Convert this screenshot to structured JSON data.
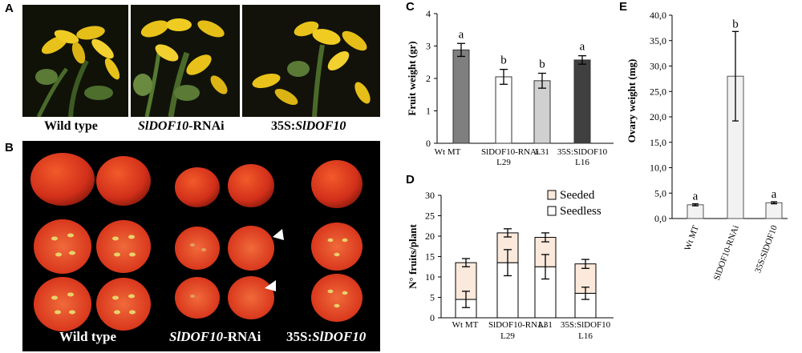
{
  "panels": {
    "A": {
      "letter": "A",
      "captions": [
        {
          "plain": "Wild type",
          "italic": "",
          "suffix": ""
        },
        {
          "plain": "",
          "italic": "SlDOF10",
          "suffix": "-RNAi"
        },
        {
          "plain": "35S:",
          "italic": "SlDOF10",
          "suffix": ""
        }
      ]
    },
    "B": {
      "letter": "B",
      "captions": [
        {
          "plain": "Wild type",
          "italic": "",
          "suffix": ""
        },
        {
          "plain": "",
          "italic": "SlDOF10",
          "suffix": "-RNAi"
        },
        {
          "plain": "35S:",
          "italic": "SlDOF10",
          "suffix": ""
        }
      ]
    },
    "C": {
      "letter": "C"
    },
    "D": {
      "letter": "D"
    },
    "E": {
      "letter": "E"
    }
  },
  "chart_data": [
    {
      "id": "C",
      "type": "bar",
      "ylabel": "Fruit weight (gr)",
      "ylim": [
        0,
        4
      ],
      "yticks": [
        "0",
        "1",
        "2",
        "3",
        "4"
      ],
      "categories": [
        [
          "Wt MT"
        ],
        [
          "SlDOF10-RNAi",
          "L29"
        ],
        [
          "L31"
        ],
        [
          "35S:SlDOF10",
          "L16"
        ]
      ],
      "values": [
        2.88,
        2.05,
        1.93,
        2.57
      ],
      "errors": [
        0.2,
        0.23,
        0.23,
        0.13
      ],
      "letters": [
        "a",
        "b",
        "b",
        "a"
      ],
      "colors": [
        "#7f7f7f",
        "#ffffff",
        "#d0d0d0",
        "#404040"
      ],
      "grid": false
    },
    {
      "id": "D",
      "type": "bar",
      "stacked": true,
      "ylabel": "N° fruits/plant",
      "ylim": [
        0,
        30
      ],
      "yticks": [
        "0",
        "5",
        "10",
        "15",
        "20",
        "25",
        "30"
      ],
      "categories": [
        [
          "Wt MT"
        ],
        [
          "SlDOF10-RNAi",
          "L29"
        ],
        [
          "L31"
        ],
        [
          "35S:SlDOF10",
          "L16"
        ]
      ],
      "series": [
        {
          "name": "Seedless",
          "values": [
            4.5,
            13.5,
            12.5,
            6.0
          ],
          "errors": [
            2.0,
            3.2,
            3.0,
            1.5
          ],
          "color": "#ffffff"
        },
        {
          "name": "Seeded",
          "values": [
            9.0,
            7.3,
            7.2,
            7.2
          ],
          "errors": [
            1.0,
            1.0,
            1.1,
            1.1
          ],
          "color": "#fbe9dc"
        }
      ],
      "legend_position": "top-right",
      "grid": false
    },
    {
      "id": "E",
      "type": "bar",
      "ylabel": "Ovary weight (mg)",
      "ylim": [
        0,
        40
      ],
      "yticks": [
        "0,0",
        "5,0",
        "10,0",
        "15,0",
        "20,0",
        "25,0",
        "30,0",
        "35,0",
        "40,0"
      ],
      "categories": [
        "Wt MT",
        "SlDOF10-RNAi",
        "35S:SlDOF10"
      ],
      "values": [
        2.7,
        28.0,
        3.1
      ],
      "errors": [
        0.2,
        8.8,
        0.2
      ],
      "letters": [
        "a",
        "b",
        "a"
      ],
      "colors": [
        "#f2f2f2",
        "#f2f2f2",
        "#f2f2f2"
      ],
      "grid": false
    }
  ]
}
